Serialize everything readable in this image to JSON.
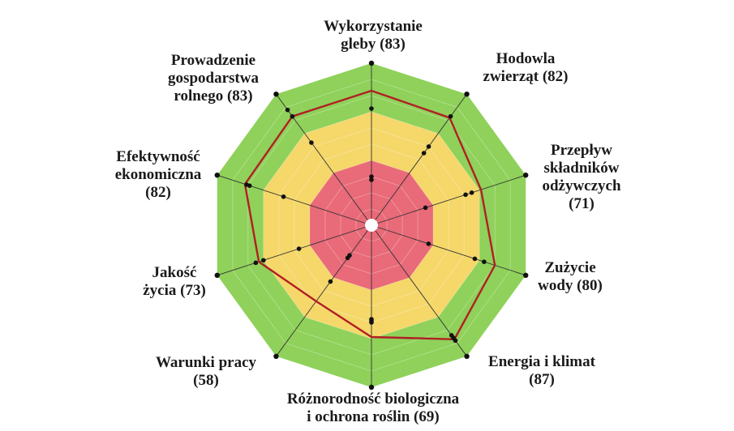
{
  "chart_data": {
    "type": "radar",
    "title": "",
    "axes": [
      {
        "label_lines": [
          "Wykorzystanie",
          "gleby (83)"
        ],
        "value": 83
      },
      {
        "label_lines": [
          "Hodowla",
          "zwierząt (82)"
        ],
        "value": 82
      },
      {
        "label_lines": [
          "Przepływ",
          "składników",
          "odżywczych",
          "(71)"
        ],
        "value": 71
      },
      {
        "label_lines": [
          "Zużycie",
          "wody (80)"
        ],
        "value": 80
      },
      {
        "label_lines": [
          "Energia i klimat",
          "(87)"
        ],
        "value": 87
      },
      {
        "label_lines": [
          "Różnorodność biologiczna",
          "i ochrona roślin (69)"
        ],
        "value": 69
      },
      {
        "label_lines": [
          "Warunki pracy",
          "(58)"
        ],
        "value": 58
      },
      {
        "label_lines": [
          "Jakość",
          "życia (73)"
        ],
        "value": 73
      },
      {
        "label_lines": [
          "Efektywność",
          "ekonomiczna",
          "(82)"
        ],
        "value": 82
      },
      {
        "label_lines": [
          "Prowadzenie",
          "gospodarstwa",
          "rolnego (83)"
        ],
        "value": 83
      }
    ],
    "range": [
      0,
      100
    ],
    "bands": [
      {
        "from": 0,
        "to": 40,
        "color": "#e96a78"
      },
      {
        "from": 40,
        "to": 70,
        "color": "#f5d76a"
      },
      {
        "from": 70,
        "to": 100,
        "color": "#8fd15a"
      }
    ],
    "sub_indicator_points": [
      [
        72,
        28,
        30
      ],
      [
        83,
        60,
        55
      ],
      [
        61,
        65,
        35
      ],
      [
        73,
        67,
        37
      ],
      [
        88,
        84,
        86
      ],
      [
        60,
        59,
        58
      ],
      [
        25,
        43,
        23
      ],
      [
        75,
        70,
        47
      ],
      [
        79,
        81,
        57
      ],
      [
        83,
        88,
        63
      ]
    ],
    "series_color": "#b11f24",
    "point_color": "#111111",
    "grid_color": "#333333"
  }
}
